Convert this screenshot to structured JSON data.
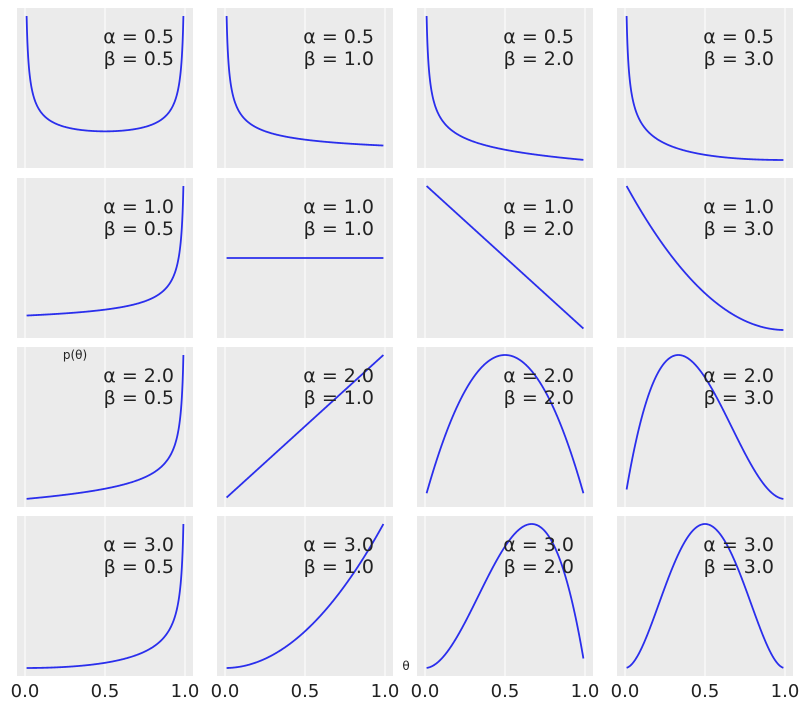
{
  "chart_data": {
    "type": "line",
    "description_free": true,
    "xlabel": "θ",
    "ylabel": "p(θ)",
    "xlim": [
      0,
      1
    ],
    "xticks": [
      "0.0",
      "0.5",
      "1.0"
    ],
    "grid": true,
    "sharex": true,
    "sharey": false,
    "yticks_visible": false,
    "color": "#2a2eec",
    "alphas": [
      0.5,
      1.0,
      2.0,
      3.0
    ],
    "betas": [
      0.5,
      1.0,
      2.0,
      3.0
    ],
    "panels": [
      {
        "alpha": 0.5,
        "beta": 0.5,
        "label_alpha": "α = 0.5",
        "label_beta": "β = 0.5"
      },
      {
        "alpha": 0.5,
        "beta": 1.0,
        "label_alpha": "α = 0.5",
        "label_beta": "β = 1.0"
      },
      {
        "alpha": 0.5,
        "beta": 2.0,
        "label_alpha": "α = 0.5",
        "label_beta": "β = 2.0"
      },
      {
        "alpha": 0.5,
        "beta": 3.0,
        "label_alpha": "α = 0.5",
        "label_beta": "β = 3.0"
      },
      {
        "alpha": 1.0,
        "beta": 0.5,
        "label_alpha": "α = 1.0",
        "label_beta": "β = 0.5"
      },
      {
        "alpha": 1.0,
        "beta": 1.0,
        "label_alpha": "α = 1.0",
        "label_beta": "β = 1.0"
      },
      {
        "alpha": 1.0,
        "beta": 2.0,
        "label_alpha": "α = 1.0",
        "label_beta": "β = 2.0"
      },
      {
        "alpha": 1.0,
        "beta": 3.0,
        "label_alpha": "α = 1.0",
        "label_beta": "β = 3.0"
      },
      {
        "alpha": 2.0,
        "beta": 0.5,
        "label_alpha": "α = 2.0",
        "label_beta": "β = 0.5"
      },
      {
        "alpha": 2.0,
        "beta": 1.0,
        "label_alpha": "α = 2.0",
        "label_beta": "β = 1.0"
      },
      {
        "alpha": 2.0,
        "beta": 2.0,
        "label_alpha": "α = 2.0",
        "label_beta": "β = 2.0"
      },
      {
        "alpha": 2.0,
        "beta": 3.0,
        "label_alpha": "α = 2.0",
        "label_beta": "β = 3.0"
      },
      {
        "alpha": 3.0,
        "beta": 0.5,
        "label_alpha": "α = 3.0",
        "label_beta": "β = 0.5"
      },
      {
        "alpha": 3.0,
        "beta": 1.0,
        "label_alpha": "α = 3.0",
        "label_beta": "β = 1.0"
      },
      {
        "alpha": 3.0,
        "beta": 2.0,
        "label_alpha": "α = 3.0",
        "label_beta": "β = 2.0"
      },
      {
        "alpha": 3.0,
        "beta": 3.0,
        "label_alpha": "α = 3.0",
        "label_beta": "β = 3.0"
      }
    ]
  }
}
